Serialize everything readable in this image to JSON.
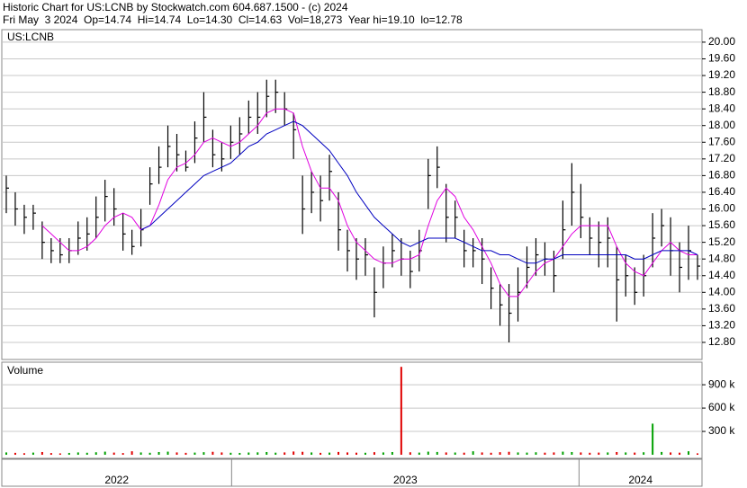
{
  "chart_data": {
    "type": "ohlc",
    "title": "Historic Chart for US:LCNB by Stockwatch.com 604.687.1500 - (c) 2024",
    "subtitle": "Fri May  3 2024  Op=14.74  Hi=14.74  Lo=14.30  Cl=14.63  Vol=18,273  Year hi=19.10  lo=12.78",
    "symbol": "US:LCNB",
    "volume_label": "Volume",
    "bar_color": "#000000",
    "xlim": [
      0,
      78
    ],
    "year_separators": [
      25.6,
      64.3
    ],
    "year_labels": [
      "2022",
      "2023",
      "2024"
    ],
    "high": [
      16.8,
      16.4,
      16.1,
      16.1,
      15.7,
      15.3,
      15.3,
      15.3,
      15.7,
      15.8,
      16.3,
      16.7,
      16.5,
      15.9,
      15.5,
      16.0,
      17.0,
      17.5,
      18.0,
      17.8,
      17.4,
      18.1,
      18.8,
      17.9,
      17.6,
      18.0,
      18.2,
      18.6,
      18.8,
      19.1,
      19.1,
      18.8,
      18.3,
      16.8,
      16.9,
      16.8,
      17.3,
      16.4,
      15.5,
      15.3,
      15.3,
      14.6,
      15.1,
      15.4,
      15.3,
      15.0,
      15.5,
      17.2,
      17.5,
      16.6,
      16.2,
      15.5,
      15.3,
      15.3,
      14.6,
      14.2,
      14.2,
      14.6,
      15.1,
      15.3,
      15.2,
      15.0,
      16.2,
      17.1,
      16.6,
      15.8,
      15.7,
      15.8,
      15.1,
      14.9,
      14.6,
      14.9,
      15.9,
      16.0,
      15.8,
      15.2,
      15.6,
      14.9
    ],
    "low": [
      15.9,
      15.6,
      15.4,
      15.5,
      14.8,
      14.7,
      14.7,
      14.7,
      14.9,
      15.0,
      15.3,
      15.7,
      15.6,
      15.0,
      14.9,
      15.1,
      16.1,
      16.6,
      17.0,
      16.9,
      16.9,
      17.1,
      17.6,
      17.0,
      16.9,
      17.2,
      17.3,
      17.8,
      17.8,
      18.2,
      18.3,
      18.0,
      17.2,
      15.4,
      15.9,
      15.7,
      16.2,
      15.0,
      14.5,
      14.3,
      14.4,
      13.4,
      14.1,
      14.6,
      14.4,
      14.1,
      14.5,
      16.0,
      16.5,
      15.2,
      15.3,
      14.6,
      14.6,
      14.2,
      13.6,
      13.2,
      12.8,
      13.3,
      14.1,
      14.4,
      14.4,
      14.0,
      14.8,
      15.6,
      15.3,
      14.9,
      14.6,
      14.6,
      13.3,
      13.9,
      13.7,
      13.9,
      14.6,
      15.1,
      14.4,
      14.0,
      14.3,
      14.3
    ],
    "close": [
      16.5,
      16.0,
      15.8,
      15.9,
      15.2,
      15.0,
      14.9,
      15.0,
      15.3,
      15.4,
      15.8,
      16.3,
      16.0,
      15.4,
      15.1,
      15.5,
      16.6,
      17.0,
      17.5,
      17.3,
      17.0,
      17.7,
      18.2,
      17.3,
      17.2,
      17.6,
      17.8,
      18.2,
      18.2,
      18.7,
      18.8,
      18.4,
      17.9,
      16.0,
      16.4,
      16.2,
      16.9,
      15.5,
      15.0,
      14.8,
      14.9,
      14.0,
      14.7,
      15.0,
      14.8,
      14.5,
      15.0,
      16.8,
      17.0,
      15.8,
      15.8,
      15.0,
      15.0,
      14.8,
      14.1,
      13.7,
      13.5,
      14.0,
      14.6,
      14.9,
      14.8,
      14.4,
      15.5,
      16.4,
      15.8,
      15.3,
      15.2,
      15.3,
      14.3,
      14.4,
      14.0,
      14.4,
      15.3,
      15.6,
      15.0,
      14.6,
      15.0,
      14.63
    ],
    "series": [
      {
        "color": "#e000e0",
        "values": [
          null,
          null,
          null,
          null,
          15.6,
          15.4,
          15.2,
          15.0,
          15.0,
          15.1,
          15.3,
          15.6,
          15.8,
          15.9,
          15.8,
          15.5,
          15.6,
          16.1,
          16.7,
          17.0,
          17.1,
          17.3,
          17.6,
          17.7,
          17.6,
          17.5,
          17.6,
          17.8,
          18.0,
          18.3,
          18.4,
          18.4,
          18.3,
          17.5,
          16.9,
          16.5,
          16.5,
          16.2,
          15.6,
          15.2,
          15.0,
          14.8,
          14.7,
          14.7,
          14.8,
          14.8,
          14.9,
          15.6,
          16.2,
          16.5,
          16.3,
          15.8,
          15.5,
          15.1,
          14.7,
          14.2,
          13.9,
          13.9,
          14.2,
          14.5,
          14.7,
          14.8,
          15.1,
          15.4,
          15.6,
          15.6,
          15.6,
          15.6,
          15.1,
          14.7,
          14.5,
          14.4,
          14.7,
          15.0,
          15.2,
          15.0,
          14.9,
          14.9
        ]
      },
      {
        "color": "#0000c0",
        "values": [
          null,
          null,
          null,
          null,
          null,
          null,
          null,
          null,
          null,
          null,
          null,
          null,
          null,
          null,
          null,
          15.5,
          15.6,
          15.8,
          16.0,
          16.2,
          16.4,
          16.6,
          16.8,
          16.9,
          17.0,
          17.1,
          17.3,
          17.5,
          17.6,
          17.8,
          17.9,
          18.0,
          18.1,
          18.0,
          17.8,
          17.6,
          17.4,
          17.1,
          16.8,
          16.4,
          16.1,
          15.8,
          15.6,
          15.4,
          15.2,
          15.1,
          15.2,
          15.3,
          15.3,
          15.3,
          15.3,
          15.2,
          15.1,
          15.0,
          15.0,
          14.9,
          14.9,
          14.8,
          14.7,
          14.7,
          14.8,
          14.8,
          14.9,
          14.9,
          14.9,
          14.9,
          14.9,
          14.9,
          14.9,
          14.9,
          14.8,
          14.8,
          14.9,
          15.0,
          15.0,
          15.0,
          15.0,
          14.9
        ]
      }
    ],
    "ylim": [
      12.39,
      20.3
    ],
    "yticks": [
      {
        "value": 20,
        "label": "20.00"
      },
      {
        "value": 19.6,
        "label": "19.60"
      },
      {
        "value": 19.2,
        "label": "19.20"
      },
      {
        "value": 18.8,
        "label": "18.80"
      },
      {
        "value": 18.4,
        "label": "18.40"
      },
      {
        "value": 18,
        "label": "18.00"
      },
      {
        "value": 17.6,
        "label": "17.60"
      },
      {
        "value": 17.2,
        "label": "17.20"
      },
      {
        "value": 16.8,
        "label": "16.80"
      },
      {
        "value": 16.4,
        "label": "16.40"
      },
      {
        "value": 16,
        "label": "16.00"
      },
      {
        "value": 15.6,
        "label": "15.60"
      },
      {
        "value": 15.2,
        "label": "15.20"
      },
      {
        "value": 14.8,
        "label": "14.80"
      },
      {
        "value": 14.4,
        "label": "14.40"
      },
      {
        "value": 14,
        "label": "14.00"
      },
      {
        "value": 13.6,
        "label": "13.60"
      },
      {
        "value": 13.2,
        "label": "13.20"
      },
      {
        "value": 12.8,
        "label": "12.80"
      }
    ],
    "grid": true,
    "volume": [
      30000,
      25000,
      20000,
      28000,
      35000,
      22000,
      18000,
      24000,
      30000,
      26000,
      32000,
      40000,
      28000,
      22000,
      45000,
      30000,
      26000,
      35000,
      40000,
      30000,
      25000,
      28000,
      33000,
      38000,
      30000,
      26000,
      24000,
      29000,
      31000,
      35000,
      27000,
      30000,
      42000,
      38000,
      30000,
      25000,
      28000,
      36000,
      30000,
      27000,
      26000,
      33000,
      30000,
      35000,
      1130000,
      32000,
      28000,
      40000,
      36000,
      30000,
      29000,
      27000,
      45000,
      30000,
      26000,
      33000,
      38000,
      30000,
      28000,
      32000,
      27000,
      30000,
      40000,
      35000,
      30000,
      26000,
      28000,
      30000,
      35000,
      30000,
      28000,
      32000,
      400000,
      36000,
      30000,
      27000,
      45000,
      18273
    ],
    "up_color": "#00a000",
    "down_color": "#e00000",
    "y2lim": [
      -46000,
      1190000
    ],
    "y2ticks": [
      {
        "value": 900000,
        "label": "900 k"
      },
      {
        "value": 600000,
        "label": "600 k"
      },
      {
        "value": 300000,
        "label": "300 k"
      }
    ]
  }
}
